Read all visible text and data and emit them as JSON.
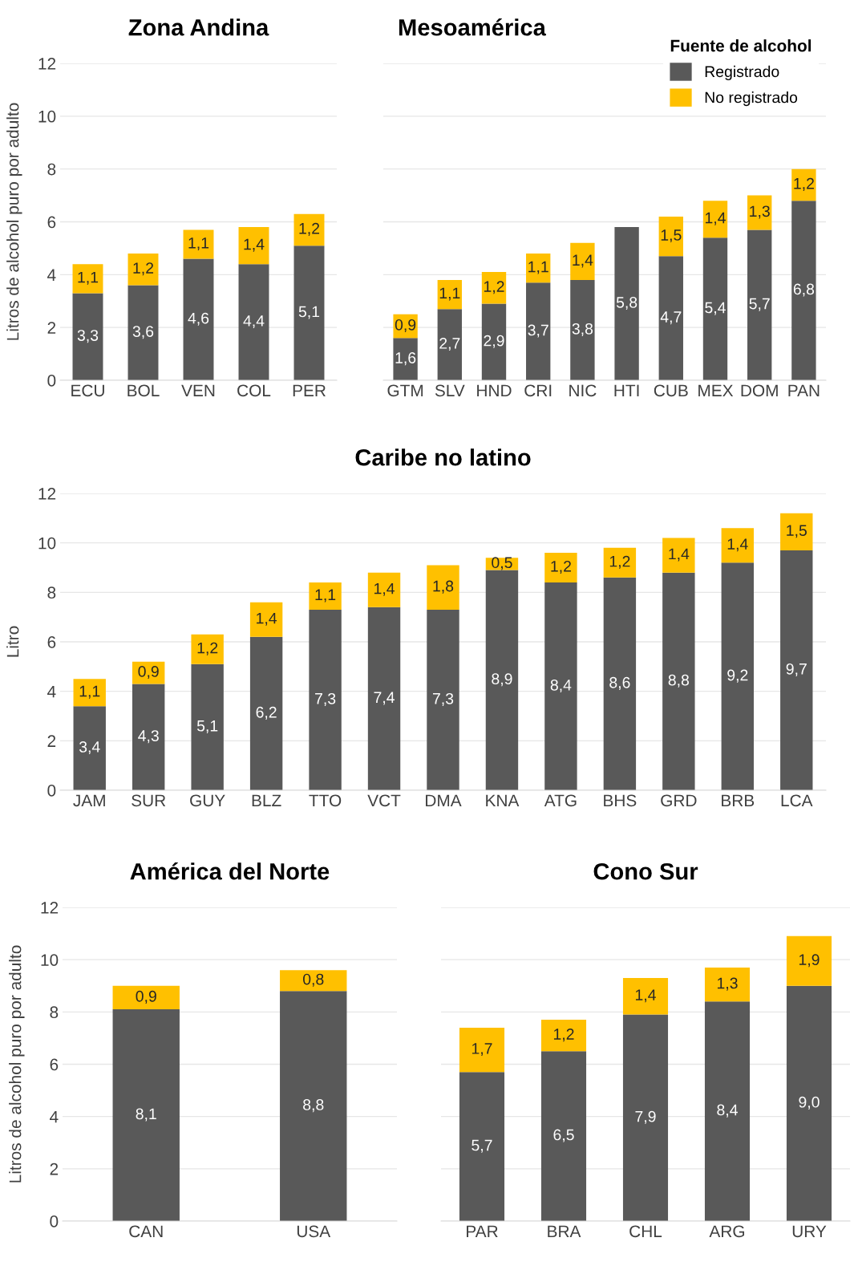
{
  "chart_data": [
    {
      "type": "bar",
      "stacked": true,
      "title": "Zona Andina",
      "ylabel": "Litros de alcohol puro por adulto",
      "categories": [
        "ECU",
        "BOL",
        "VEN",
        "COL",
        "PER"
      ],
      "ylim": [
        0,
        12
      ],
      "yticks": [
        0,
        2,
        4,
        6,
        8,
        10,
        12
      ],
      "grid": "y",
      "series": [
        {
          "color": "#595959",
          "values": [
            3.3,
            3.6,
            4.6,
            4.4,
            5.1
          ],
          "value_labels": [
            "3,3",
            "3,6",
            "4,6",
            "4,4",
            "5,1"
          ]
        },
        {
          "color": "#ffc000",
          "values": [
            1.1,
            1.2,
            1.1,
            1.4,
            1.2
          ],
          "value_labels": [
            "1,1",
            "1,2",
            "1,1",
            "1,4",
            "1,2"
          ]
        }
      ]
    },
    {
      "type": "bar",
      "stacked": true,
      "title": "Mesoamérica",
      "legend_title": "Fuente de alcohol",
      "legend": "top right",
      "tick_labels": "x",
      "categories": [
        "GTM",
        "SLV",
        "HND",
        "CRI",
        "NIC",
        "HTI",
        "CUB",
        "MEX",
        "DOM",
        "PAN"
      ],
      "ylim": [
        0,
        12
      ],
      "yticks": [
        0,
        2,
        4,
        6,
        8,
        10,
        12
      ],
      "grid": "y",
      "series": [
        {
          "name": "Registrado",
          "color": "#595959",
          "values": [
            1.6,
            2.7,
            2.9,
            3.7,
            3.8,
            5.8,
            4.7,
            5.4,
            5.7,
            6.8
          ],
          "value_labels": [
            "1,6",
            "2,7",
            "2,9",
            "3,7",
            "3,8",
            "5,8",
            "4,7",
            "5,4",
            "5,7",
            "6,8"
          ]
        },
        {
          "name": "No registrado",
          "color": "#ffc000",
          "values": [
            0.9,
            1.1,
            1.2,
            1.1,
            1.4,
            null,
            1.5,
            1.4,
            1.3,
            1.2
          ],
          "value_labels": [
            "0,9",
            "1,1",
            "1,2",
            "1,1",
            "1,4",
            null,
            "1,5",
            "1,4",
            "1,3",
            "1,2"
          ]
        }
      ]
    },
    {
      "type": "bar",
      "stacked": true,
      "title": "Caribe no latino",
      "ylabel": "Litro",
      "categories": [
        "JAM",
        "SUR",
        "GUY",
        "BLZ",
        "TTO",
        "VCT",
        "DMA",
        "KNA",
        "ATG",
        "BHS",
        "GRD",
        "BRB",
        "LCA"
      ],
      "ylim": [
        0,
        12
      ],
      "yticks": [
        0,
        2,
        4,
        6,
        8,
        10,
        12
      ],
      "grid": "y",
      "series": [
        {
          "color": "#595959",
          "values": [
            3.4,
            4.3,
            5.1,
            6.2,
            7.3,
            7.4,
            7.3,
            8.9,
            8.4,
            8.6,
            8.8,
            9.2,
            9.7
          ],
          "value_labels": [
            "3,4",
            "4,3",
            "5,1",
            "6,2",
            "7,3",
            "7,4",
            "7,3",
            "8,9",
            "8,4",
            "8,6",
            "8,8",
            "9,2",
            "9,7"
          ]
        },
        {
          "color": "#ffc000",
          "values": [
            1.1,
            0.9,
            1.2,
            1.4,
            1.1,
            1.4,
            1.8,
            0.5,
            1.2,
            1.2,
            1.4,
            1.4,
            1.5
          ],
          "value_labels": [
            "1,1",
            "0,9",
            "1,2",
            "1,4",
            "1,1",
            "1,4",
            "1,8",
            "0,5",
            "1,2",
            "1,2",
            "1,4",
            "1,4",
            "1,5"
          ]
        }
      ]
    },
    {
      "type": "bar",
      "stacked": true,
      "title": "América del Norte",
      "ylabel": "Litros de alcohol puro por adulto",
      "categories": [
        "CAN",
        "USA"
      ],
      "ylim": [
        0,
        12
      ],
      "yticks": [
        0,
        2,
        4,
        6,
        8,
        10,
        12
      ],
      "grid": "y",
      "series": [
        {
          "color": "#595959",
          "values": [
            8.1,
            8.8
          ],
          "value_labels": [
            "8,1",
            "8,8"
          ]
        },
        {
          "color": "#ffc000",
          "values": [
            0.9,
            0.8
          ],
          "value_labels": [
            "0,9",
            "0,8"
          ]
        }
      ]
    },
    {
      "type": "bar",
      "stacked": true,
      "title": "Cono Sur",
      "tick_labels": "x",
      "categories": [
        "PAR",
        "BRA",
        "CHL",
        "ARG",
        "URY"
      ],
      "ylim": [
        0,
        12
      ],
      "yticks": [
        0,
        2,
        4,
        6,
        8,
        10,
        12
      ],
      "grid": "y",
      "series": [
        {
          "color": "#595959",
          "values": [
            5.7,
            6.5,
            7.9,
            8.4,
            9.0
          ],
          "value_labels": [
            "5,7",
            "6,5",
            "7,9",
            "8,4",
            "9,0"
          ]
        },
        {
          "color": "#ffc000",
          "values": [
            1.7,
            1.2,
            1.4,
            1.3,
            1.9
          ],
          "value_labels": [
            "1,7",
            "1,2",
            "1,4",
            "1,3",
            "1,9"
          ]
        }
      ]
    }
  ]
}
